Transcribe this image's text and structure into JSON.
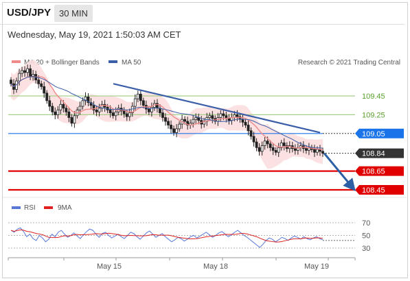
{
  "header": {
    "pair": "USD/JPY",
    "timeframe": "30 MIN",
    "timestamp": "Wednesday, May 19, 2021 1:50:03 AM CET"
  },
  "legend": {
    "ma20": "MA 20 + Bollinger Bands",
    "ma50": "MA 50",
    "rsi": "RSI",
    "ma9": "9MA"
  },
  "credit": "Research © 2021 Trading Central",
  "colors": {
    "ma20": "#f08a8a",
    "ma50": "#3a5ea8",
    "bands": "#fbdede",
    "rsi": "#5878d8",
    "ma9": "#e02020",
    "resistance_green": "#a8cf8a",
    "current_price": "#333333",
    "support_red": "#e00000",
    "pivot_blue": "#1a73e8",
    "arrow": "#2c5fa3"
  },
  "chart_data": {
    "type": "candlestick",
    "x_labels": [
      "May 15",
      "May 18",
      "May 19"
    ],
    "price_levels": [
      {
        "value": "109.45",
        "kind": "resistance"
      },
      {
        "value": "109.25",
        "kind": "resistance"
      },
      {
        "value": "109.05",
        "kind": "pivot"
      },
      {
        "value": "108.84",
        "kind": "current"
      },
      {
        "value": "108.65",
        "kind": "support"
      },
      {
        "value": "108.45",
        "kind": "support"
      }
    ],
    "price_range": [
      108.4,
      109.9
    ],
    "trendline": {
      "from": 109.58,
      "to": 109.06
    },
    "forecast_arrow": {
      "from": 108.84,
      "to": 108.45
    },
    "closes": [
      109.58,
      109.52,
      109.61,
      109.69,
      109.72,
      109.7,
      109.74,
      109.66,
      109.68,
      109.62,
      109.58,
      109.55,
      109.48,
      109.4,
      109.34,
      109.28,
      109.25,
      109.3,
      109.36,
      109.32,
      109.28,
      109.22,
      109.16,
      109.24,
      109.3,
      109.34,
      109.4,
      109.44,
      109.38,
      109.35,
      109.3,
      109.28,
      109.32,
      109.36,
      109.33,
      109.3,
      109.27,
      109.24,
      109.28,
      109.32,
      109.29,
      109.26,
      109.23,
      109.27,
      109.34,
      109.42,
      109.47,
      109.4,
      109.35,
      109.31,
      109.28,
      109.33,
      109.37,
      109.32,
      109.27,
      109.22,
      109.18,
      109.14,
      109.1,
      109.06,
      109.1,
      109.15,
      109.2,
      109.18,
      109.14,
      109.16,
      109.2,
      109.22,
      109.19,
      109.15,
      109.18,
      109.22,
      109.24,
      109.21,
      109.18,
      109.22,
      109.26,
      109.24,
      109.21,
      109.19,
      109.22,
      109.25,
      109.23,
      109.2,
      109.17,
      109.14,
      109.08,
      109.02,
      108.96,
      108.9,
      108.86,
      108.92,
      108.97,
      108.94,
      108.9,
      108.87,
      108.85,
      108.9,
      108.95,
      108.92,
      108.89,
      108.92,
      108.89,
      108.87,
      108.9,
      108.92,
      108.89,
      108.87,
      108.9,
      108.88,
      108.85,
      108.88,
      108.86,
      108.84
    ],
    "rsi": {
      "levels": [
        "70",
        "50",
        "30"
      ],
      "range": [
        20,
        80
      ],
      "values": [
        58,
        55,
        60,
        62,
        56,
        48,
        52,
        45,
        42,
        50,
        46,
        40,
        44,
        52,
        48,
        55,
        58,
        52,
        47,
        50,
        54,
        49,
        45,
        51,
        56,
        60,
        58,
        52,
        47,
        53,
        55,
        50,
        46,
        49,
        52,
        48,
        45,
        50,
        55,
        53,
        48,
        44,
        49,
        54,
        57,
        52,
        47,
        50,
        53,
        48,
        44,
        40,
        43,
        47,
        45,
        41,
        44,
        48,
        50,
        46,
        49,
        52,
        55,
        51,
        47,
        50,
        54,
        56,
        52,
        48,
        51,
        55,
        58,
        54,
        50,
        47,
        43,
        39,
        35,
        31,
        36,
        42,
        46,
        44,
        40,
        43,
        47,
        45,
        42,
        46,
        49,
        47,
        44,
        48,
        45,
        43,
        46,
        48,
        45,
        43
      ]
    }
  }
}
